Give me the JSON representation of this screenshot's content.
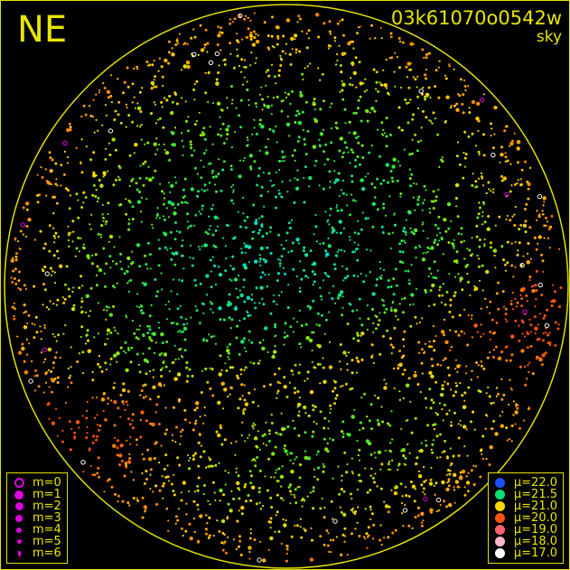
{
  "header": {
    "direction": "NE",
    "frame_id": "03k61070o0542w",
    "mode": "sky"
  },
  "magnitude_legend": [
    {
      "label": "m=0",
      "hollow": true
    },
    {
      "label": "m=1"
    },
    {
      "label": "m=2"
    },
    {
      "label": "m=3"
    },
    {
      "label": "m=4"
    },
    {
      "label": "m=5"
    },
    {
      "label": "m=6"
    }
  ],
  "magnitude_color": "#e000e0",
  "brightness_legend": [
    {
      "label": "μ=22.0",
      "color": "#1a50ff"
    },
    {
      "label": "μ=21.5",
      "color": "#00e070"
    },
    {
      "label": "μ=21.0",
      "color": "#ffd800"
    },
    {
      "label": "μ=20.0",
      "color": "#ff5010"
    },
    {
      "label": "μ=19.0",
      "color": "#ff6070"
    },
    {
      "label": "μ=18.0",
      "color": "#ffb8c8"
    },
    {
      "label": "μ=17.0",
      "color": "#ffffff"
    }
  ],
  "horizon_color": "#e0e000"
}
